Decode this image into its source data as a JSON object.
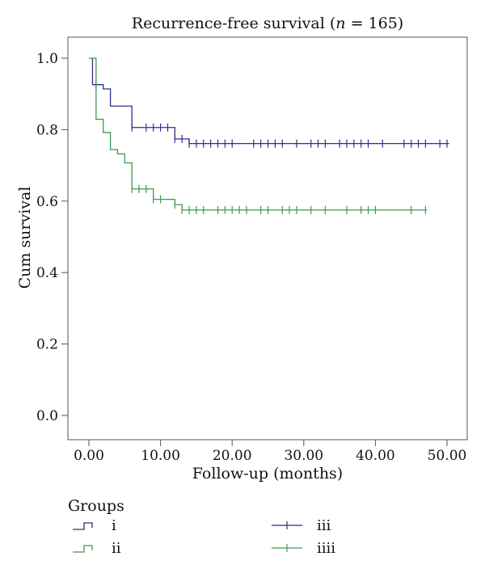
{
  "chart_data": {
    "type": "line",
    "title": {
      "prefix": "Recurrence-free survival (",
      "n_symbol": "n",
      "suffix": " = 165)"
    },
    "xlabel": "Follow-up (months)",
    "ylabel": "Cum survival",
    "xlim": [
      0,
      50
    ],
    "ylim": [
      0,
      1.0
    ],
    "x_ticks": [
      0,
      10,
      20,
      30,
      40,
      50
    ],
    "x_tick_labels": [
      "0.00",
      "10.00",
      "20.00",
      "30.00",
      "40.00",
      "50.00"
    ],
    "y_ticks": [
      0.0,
      0.2,
      0.4,
      0.6,
      0.8,
      1.0
    ],
    "y_tick_labels": [
      "0.0",
      "0.2",
      "0.4",
      "0.6",
      "0.8",
      "1.0"
    ],
    "grid": false,
    "legend": {
      "title": "Groups",
      "placement": "bottom",
      "entries": [
        {
          "label": "i",
          "kind": "step",
          "series": 0
        },
        {
          "label": "ii",
          "kind": "step",
          "series": 1
        },
        {
          "label": "iii",
          "kind": "censor",
          "series": 0
        },
        {
          "label": "iiii",
          "kind": "censor",
          "series": 1
        }
      ]
    },
    "series": [
      {
        "color": "#2e2f8c",
        "steps": [
          [
            0.5,
            1.0
          ],
          [
            0.5,
            0.926
          ],
          [
            2,
            0.914
          ],
          [
            3,
            0.866
          ],
          [
            6,
            0.806
          ],
          [
            12,
            0.774
          ],
          [
            14,
            0.761
          ],
          [
            50.3,
            0.761
          ]
        ],
        "censored": [
          1,
          6,
          8,
          9,
          10,
          11,
          12,
          13,
          14,
          15,
          16,
          17,
          18,
          19,
          20,
          23,
          24,
          25,
          26,
          27,
          29,
          31,
          32,
          33,
          35,
          36,
          37,
          38,
          39,
          41,
          44,
          45,
          46,
          47,
          49,
          50
        ]
      },
      {
        "color": "#3d9a4f",
        "steps": [
          [
            0,
            1.0
          ],
          [
            1,
            0.829
          ],
          [
            2,
            0.792
          ],
          [
            3,
            0.744
          ],
          [
            4,
            0.732
          ],
          [
            5,
            0.707
          ],
          [
            6,
            0.634
          ],
          [
            9,
            0.605
          ],
          [
            12,
            0.59
          ],
          [
            13,
            0.575
          ],
          [
            47.2,
            0.575
          ]
        ],
        "censored": [
          6,
          7,
          8,
          9,
          10,
          12,
          13,
          14,
          15,
          16,
          18,
          19,
          20,
          21,
          22,
          24,
          25,
          27,
          28,
          29,
          31,
          33,
          36,
          38,
          39,
          40,
          45,
          47
        ]
      }
    ]
  }
}
